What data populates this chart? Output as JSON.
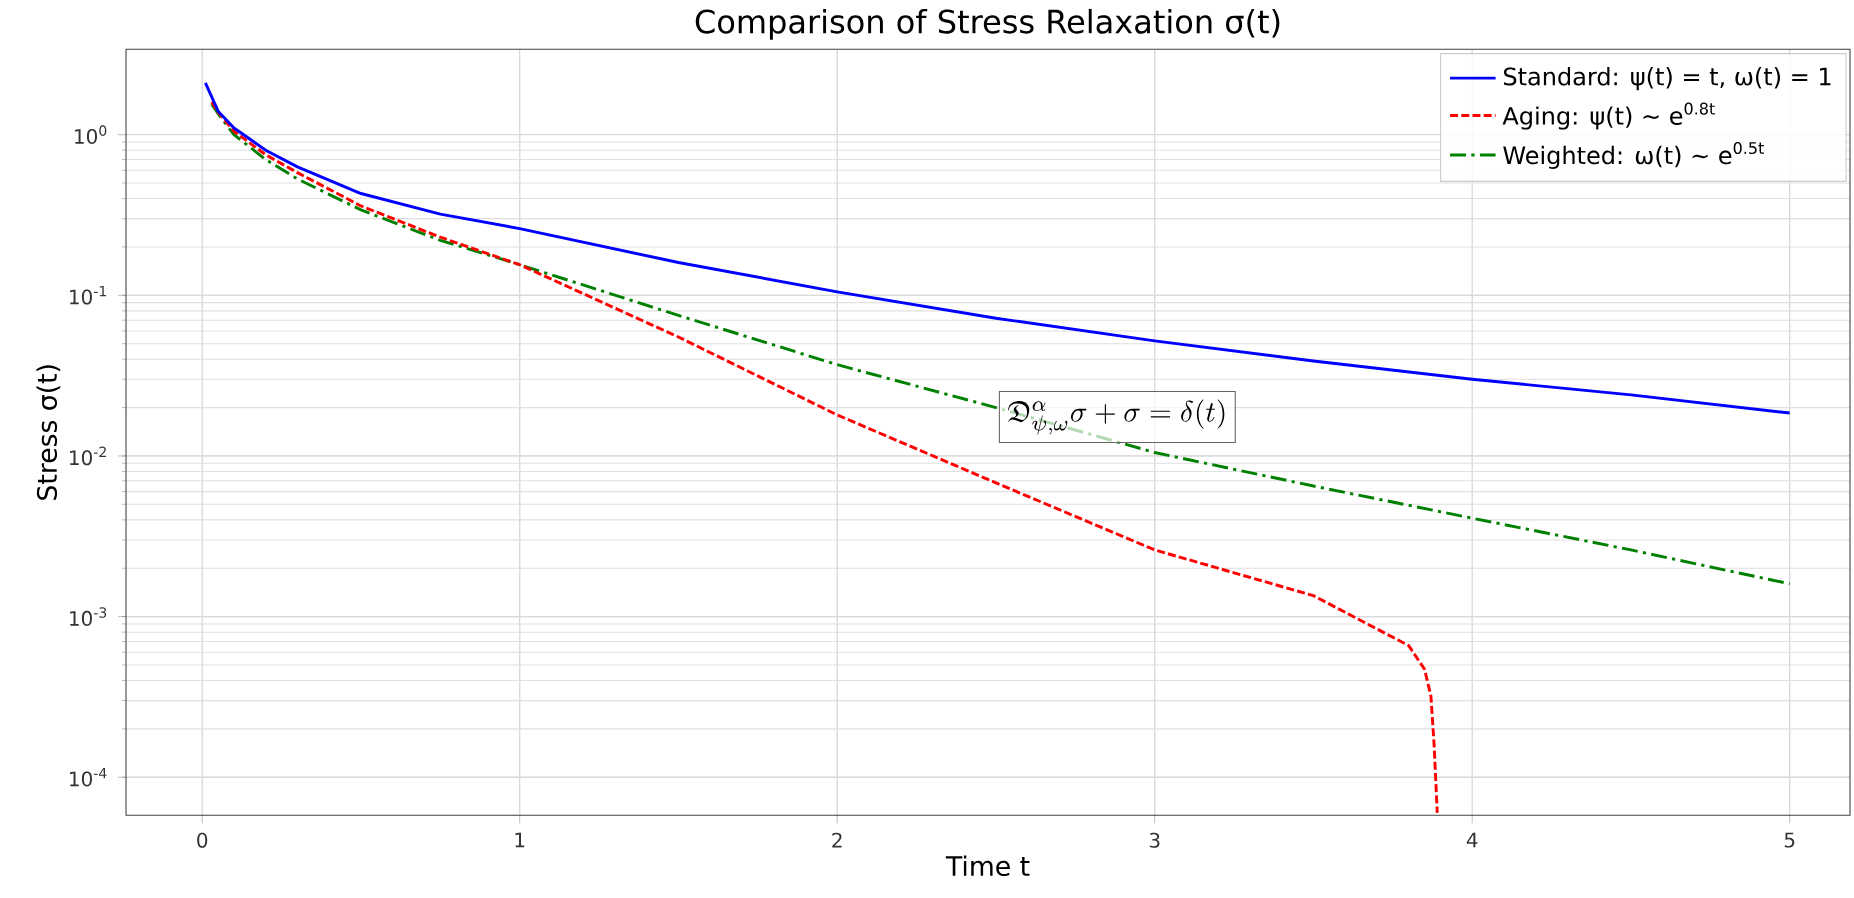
{
  "chart_data": {
    "type": "line",
    "title": "Comparison of Stress Relaxation σ(t)",
    "xlabel": "Time t",
    "ylabel": "Stress σ(t)",
    "log": "y",
    "grid": true,
    "legend": "top right",
    "marker": "none",
    "xlim": [
      -0.24,
      5.19
    ],
    "xticks": [
      0,
      1,
      2,
      3,
      4,
      5
    ],
    "ylim": [
      5.8e-05,
      3.4
    ],
    "yticks": [
      {
        "value": 0.0001,
        "label": "10$^{-4}$"
      },
      {
        "value": 0.001,
        "label": "10$^{-3}$"
      },
      {
        "value": 0.01,
        "label": "10$^{-2}$"
      },
      {
        "value": 0.1,
        "label": "10$^{-1}$"
      },
      {
        "value": 1,
        "label": "10$^{0}$"
      }
    ],
    "annotations": [
      "\\mathfrak{D}^{\\alpha}_{\\psi,\\omega}\\sigma+\\sigma=\\delta(t)"
    ],
    "series": [
      {
        "name": "Standard: ψ(t) = t, ω(t) = 1",
        "color": "#0000ff",
        "line_style": "solid",
        "x": [
          0.01,
          0.05,
          0.1,
          0.2,
          0.3,
          0.5,
          0.75,
          1,
          1.5,
          2,
          2.5,
          3,
          3.5,
          4,
          4.5,
          5
        ],
        "values": [
          2.1,
          1.4,
          1.1,
          0.8,
          0.63,
          0.43,
          0.32,
          0.26,
          0.16,
          0.105,
          0.072,
          0.052,
          0.039,
          0.03,
          0.024,
          0.0185
        ]
      },
      {
        "name": "Aging: ψ(t) ~ e$^{0.8t}$",
        "color": "#ff0000",
        "line_style": "dashed",
        "x": [
          0.03,
          0.05,
          0.1,
          0.2,
          0.3,
          0.5,
          0.75,
          1,
          1.5,
          2,
          2.5,
          3,
          3.5,
          3.8,
          3.85,
          3.87,
          3.88,
          3.89
        ],
        "values": [
          1.6,
          1.38,
          1.05,
          0.75,
          0.58,
          0.36,
          0.23,
          0.155,
          0.055,
          0.018,
          0.0068,
          0.0026,
          0.00135,
          0.00066,
          0.00047,
          0.00032,
          0.00016,
          6e-05
        ]
      },
      {
        "name": "Weighted: ω(t) ~ e$^{0.5t}$",
        "color": "#008000",
        "line_style": "dashdot",
        "x": [
          0.03,
          0.05,
          0.1,
          0.2,
          0.3,
          0.5,
          0.75,
          1,
          1.5,
          2,
          2.5,
          3,
          3.5,
          4,
          4.5,
          5
        ],
        "values": [
          1.55,
          1.35,
          1.0,
          0.7,
          0.53,
          0.34,
          0.22,
          0.155,
          0.075,
          0.037,
          0.02,
          0.0105,
          0.0065,
          0.0041,
          0.0026,
          0.0016
        ]
      }
    ]
  }
}
